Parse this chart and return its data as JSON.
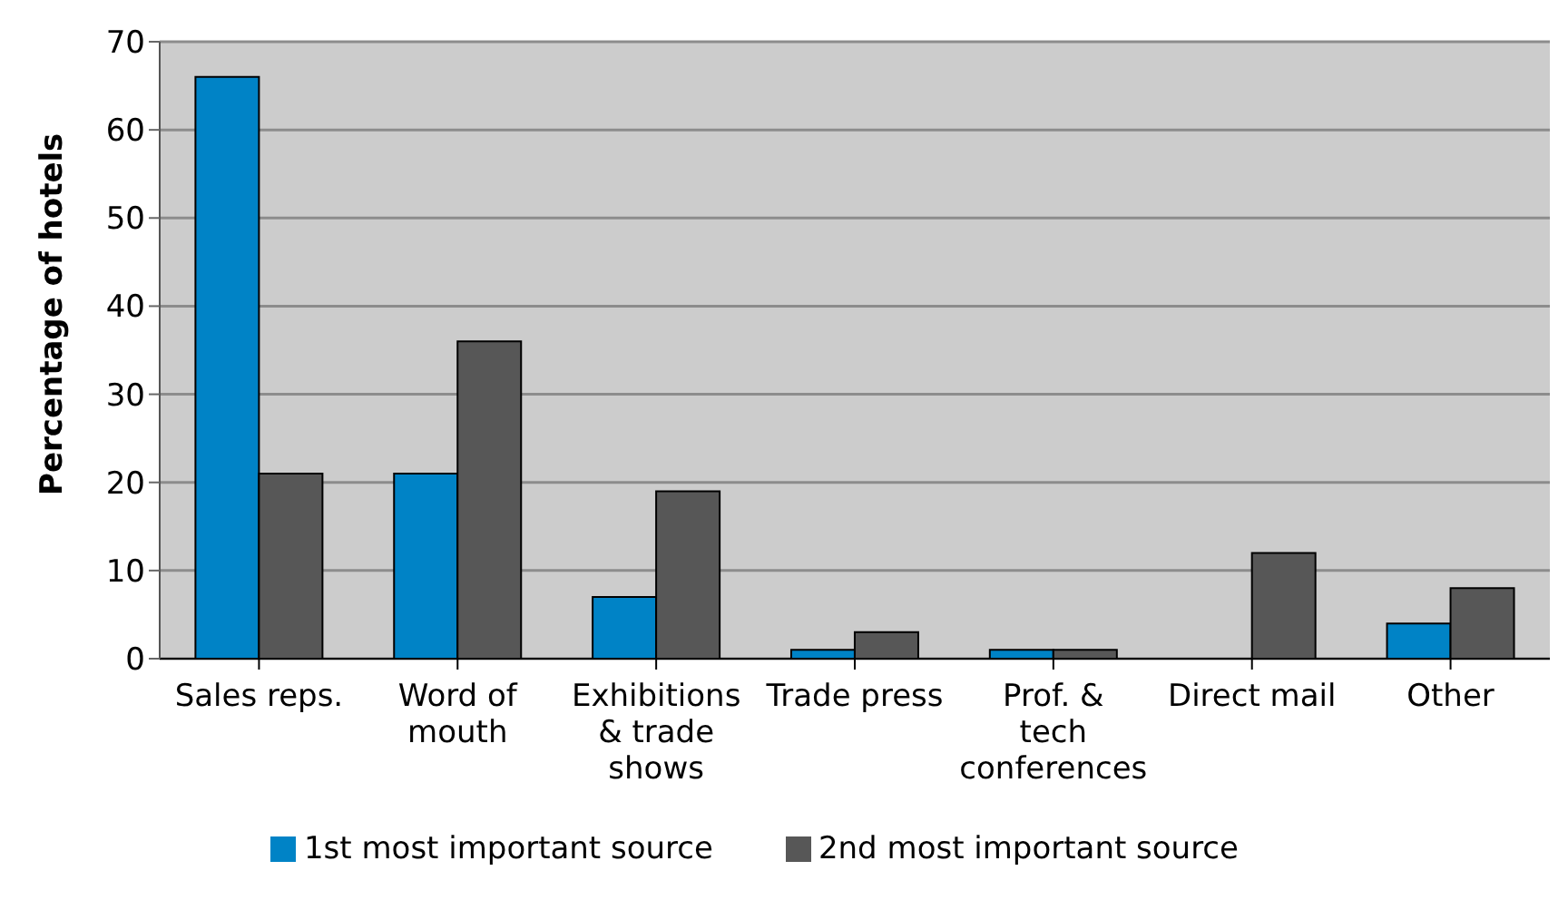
{
  "chart_data": {
    "type": "bar",
    "ylabel": "Percentage of hotels",
    "categories": [
      "Sales reps.",
      "Word of mouth",
      "Exhibitions & trade shows",
      "Trade press",
      "Prof. & tech conferences",
      "Direct mail",
      "Other"
    ],
    "series": [
      {
        "name": "1st most important source",
        "color": "#0083c6",
        "values": [
          66,
          21,
          7,
          1,
          1,
          0,
          4
        ]
      },
      {
        "name": "2nd most important source",
        "color": "#575757",
        "values": [
          21,
          36,
          19,
          3,
          1,
          12,
          8
        ]
      }
    ],
    "ylim": [
      0,
      70
    ],
    "yticks": [
      0,
      10,
      20,
      30,
      40,
      50,
      60,
      70
    ],
    "grid": "y",
    "legend": "bottom"
  }
}
